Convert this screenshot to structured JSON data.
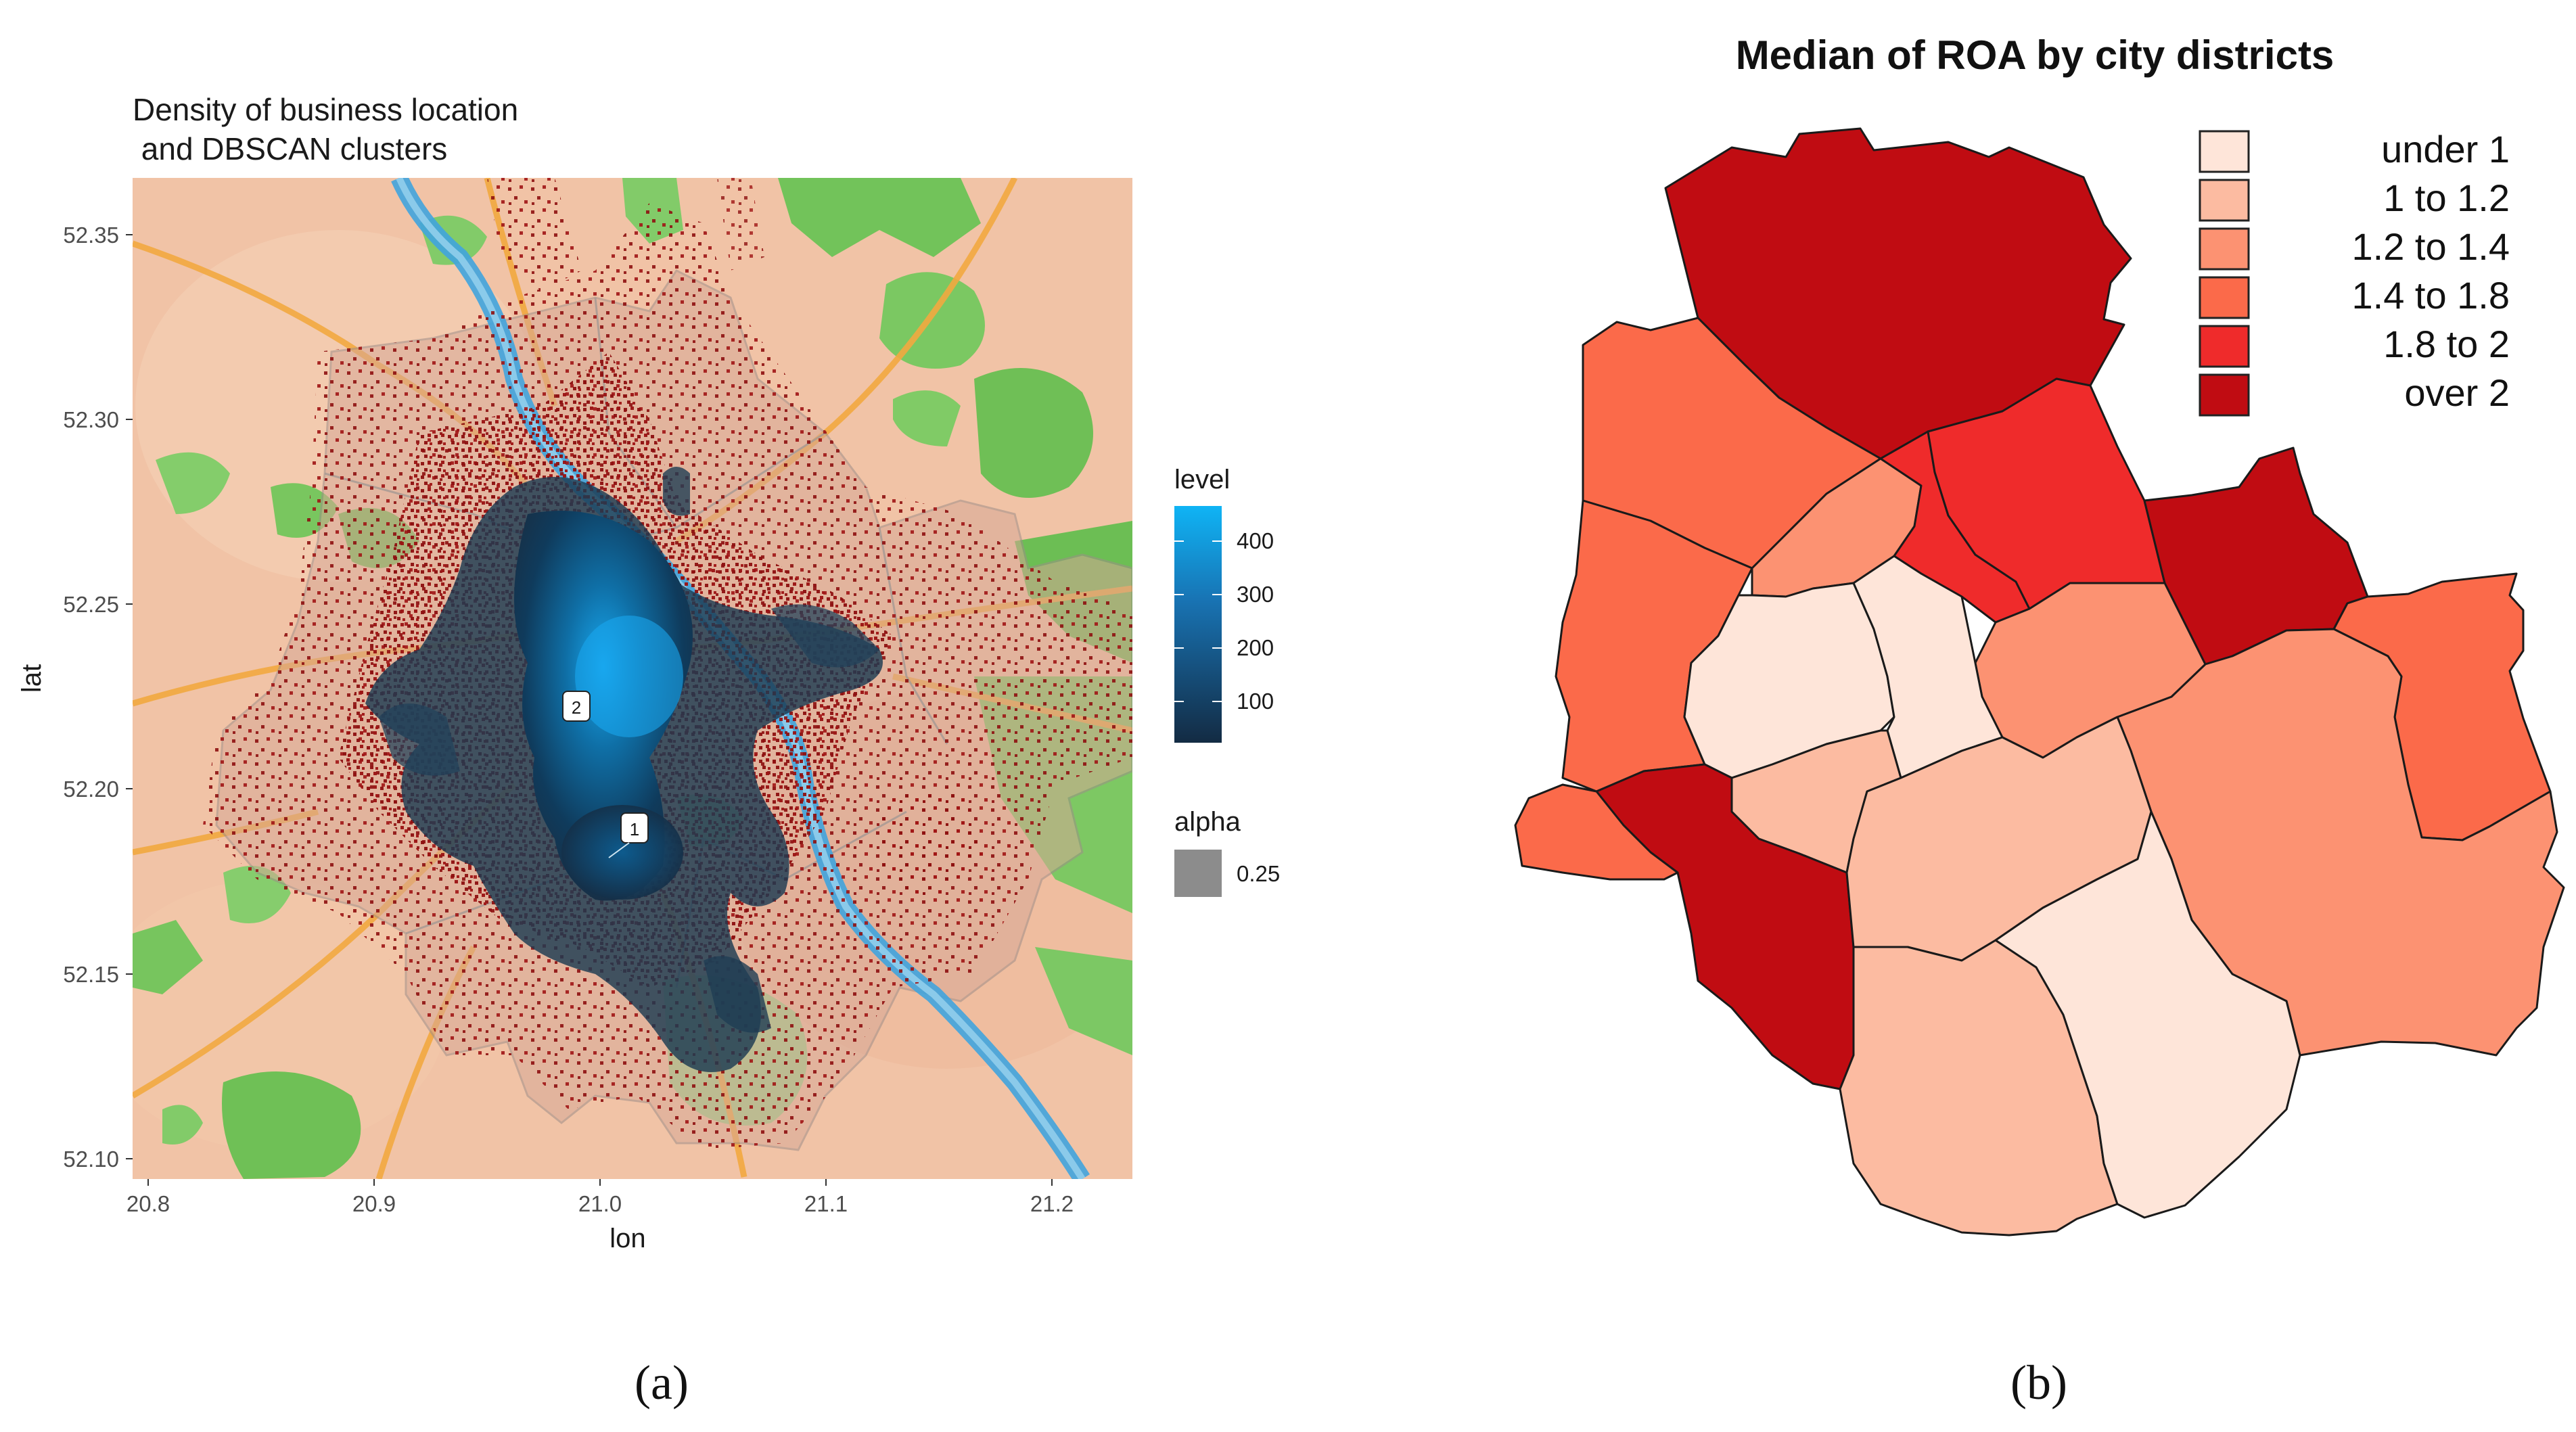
{
  "panel_a": {
    "title_line1": "Density of business location",
    "title_line2": " and DBSCAN clusters",
    "x_label": "lon",
    "y_label": "lat",
    "x_ticks": [
      "20.8",
      "20.9",
      "21.0",
      "21.1",
      "21.2"
    ],
    "y_ticks": [
      "52.35",
      "52.30",
      "52.25",
      "52.20",
      "52.15",
      "52.10"
    ],
    "legend_level_title": "level",
    "legend_level_labels": [
      "400",
      "300",
      "200",
      "100"
    ],
    "legend_alpha_title": "alpha",
    "legend_alpha_label": "0.25",
    "cluster_labels": [
      "2",
      "1"
    ],
    "caption": "(a)"
  },
  "panel_b": {
    "title": "Median of ROA by city districts",
    "legend": [
      {
        "label": "under 1",
        "color": "#fee5d9"
      },
      {
        "label": "1 to 1.2",
        "color": "#fcbba1"
      },
      {
        "label": "1.2 to 1.4",
        "color": "#fc9272"
      },
      {
        "label": "1.4 to 1.8",
        "color": "#fb6a4a"
      },
      {
        "label": "1.8 to 2",
        "color": "#ef2b2b"
      },
      {
        "label": "over 2",
        "color": "#c00c12"
      }
    ],
    "caption": "(b)"
  }
}
